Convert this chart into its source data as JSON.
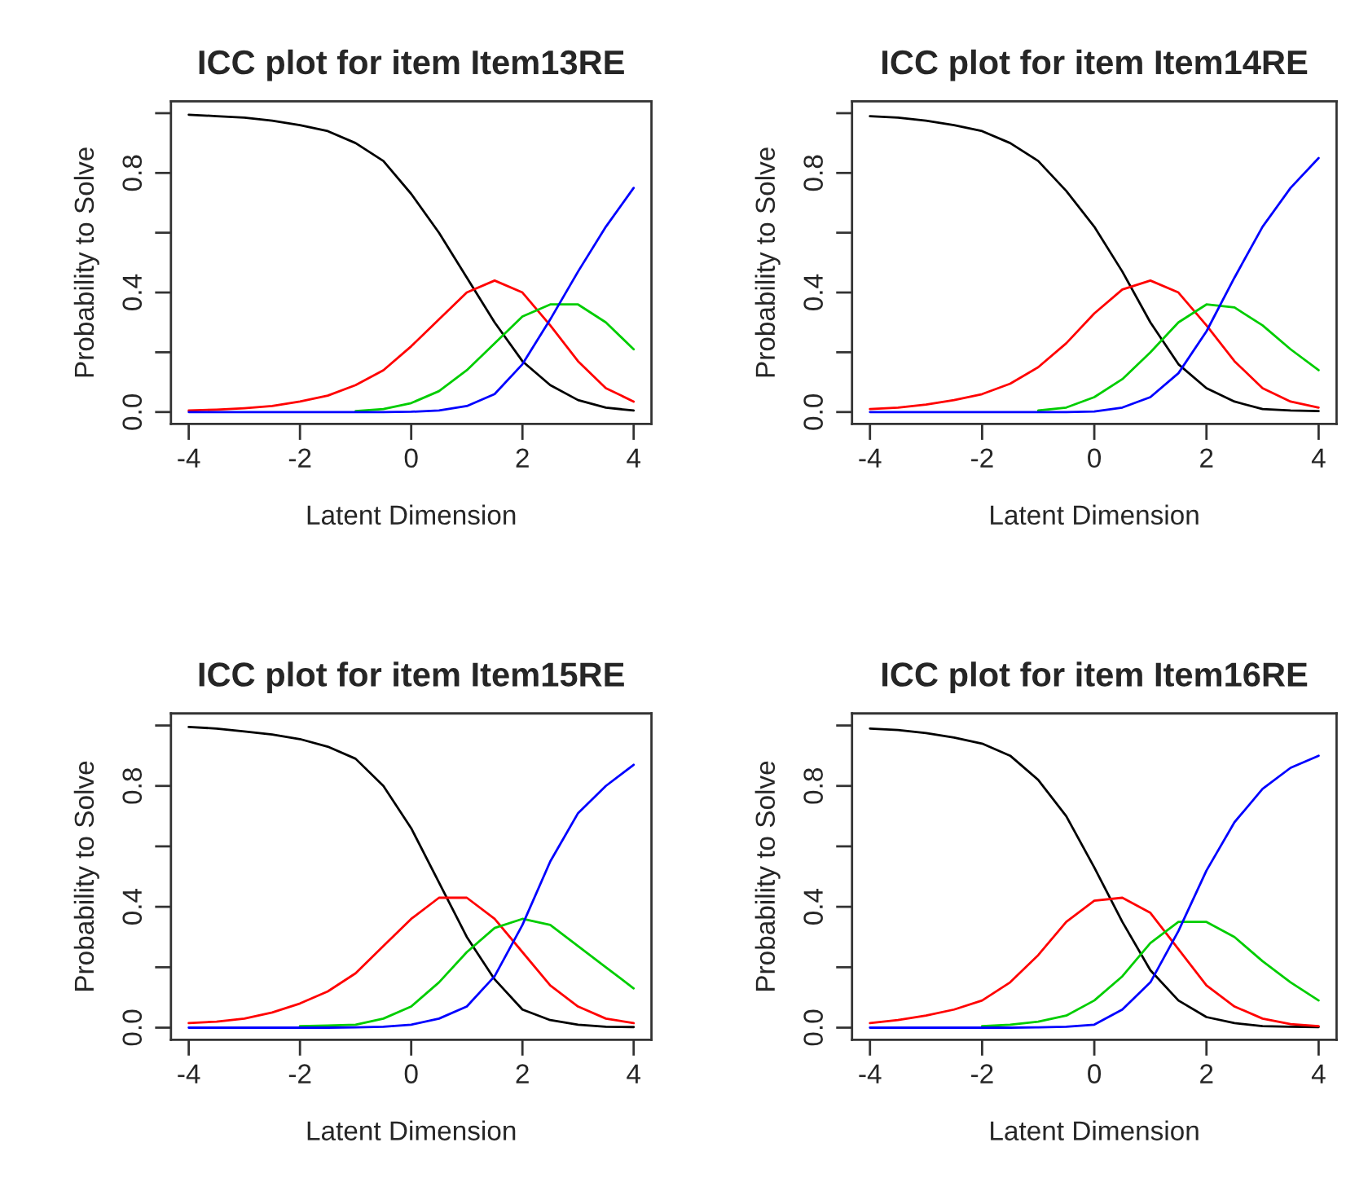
{
  "chart_data": [
    {
      "type": "line",
      "title": "ICC plot for item Item13RE",
      "xlabel": "Latent Dimension",
      "ylabel": "Probability to Solve",
      "x": [
        -4,
        -3.5,
        -3,
        -2.5,
        -2,
        -1.5,
        -1,
        -0.5,
        0,
        0.5,
        1,
        1.5,
        2,
        2.5,
        3,
        3.5,
        4
      ],
      "series": [
        {
          "color": "#000000",
          "values": [
            0.995,
            0.99,
            0.985,
            0.975,
            0.96,
            0.94,
            0.9,
            0.84,
            0.73,
            0.6,
            0.45,
            0.3,
            0.17,
            0.09,
            0.04,
            0.015,
            0.005
          ]
        },
        {
          "color": "#ff0000",
          "values": [
            0.005,
            0.008,
            0.013,
            0.02,
            0.035,
            0.055,
            0.09,
            0.14,
            0.22,
            0.31,
            0.4,
            0.44,
            0.4,
            0.29,
            0.17,
            0.08,
            0.035
          ]
        },
        {
          "color": "#00cd00",
          "values": [
            null,
            null,
            null,
            null,
            null,
            null,
            0.003,
            0.01,
            0.03,
            0.07,
            0.14,
            0.23,
            0.32,
            0.36,
            0.36,
            0.3,
            0.21
          ]
        },
        {
          "color": "#0000ff",
          "values": [
            0,
            0,
            0,
            0,
            0,
            0,
            0,
            0,
            0.001,
            0.005,
            0.02,
            0.06,
            0.16,
            0.31,
            0.47,
            0.62,
            0.75
          ]
        }
      ],
      "xlim": [
        -4.32,
        4.32
      ],
      "ylim": [
        -0.04,
        1.04
      ],
      "xticks": [
        -4,
        -2,
        0,
        2,
        4
      ],
      "yticks": [
        {
          "value": 0,
          "label": "0.0"
        },
        {
          "value": 0.2,
          "label": null
        },
        {
          "value": 0.4,
          "label": "0.4"
        },
        {
          "value": 0.6,
          "label": null
        },
        {
          "value": 0.8,
          "label": "0.8"
        },
        {
          "value": 1.0,
          "label": null
        }
      ]
    },
    {
      "type": "line",
      "title": "ICC plot for item Item14RE",
      "xlabel": "Latent Dimension",
      "ylabel": "Probability to Solve",
      "x": [
        -4,
        -3.5,
        -3,
        -2.5,
        -2,
        -1.5,
        -1,
        -0.5,
        0,
        0.5,
        1,
        1.5,
        2,
        2.5,
        3,
        3.5,
        4
      ],
      "series": [
        {
          "color": "#000000",
          "values": [
            0.99,
            0.985,
            0.975,
            0.96,
            0.94,
            0.9,
            0.84,
            0.74,
            0.62,
            0.47,
            0.3,
            0.16,
            0.08,
            0.035,
            0.01,
            0.005,
            0.003
          ]
        },
        {
          "color": "#ff0000",
          "values": [
            0.01,
            0.015,
            0.025,
            0.04,
            0.06,
            0.095,
            0.15,
            0.23,
            0.33,
            0.41,
            0.44,
            0.4,
            0.29,
            0.17,
            0.08,
            0.035,
            0.015
          ]
        },
        {
          "color": "#00cd00",
          "values": [
            null,
            null,
            null,
            null,
            null,
            null,
            0.005,
            0.015,
            0.05,
            0.11,
            0.2,
            0.3,
            0.36,
            0.35,
            0.29,
            0.21,
            0.14
          ]
        },
        {
          "color": "#0000ff",
          "values": [
            0,
            0,
            0,
            0,
            0,
            0,
            0,
            0,
            0.002,
            0.015,
            0.05,
            0.13,
            0.27,
            0.45,
            0.62,
            0.75,
            0.85
          ]
        }
      ],
      "xlim": [
        -4.32,
        4.32
      ],
      "ylim": [
        -0.04,
        1.04
      ],
      "xticks": [
        -4,
        -2,
        0,
        2,
        4
      ],
      "yticks": [
        {
          "value": 0,
          "label": "0.0"
        },
        {
          "value": 0.2,
          "label": null
        },
        {
          "value": 0.4,
          "label": "0.4"
        },
        {
          "value": 0.6,
          "label": null
        },
        {
          "value": 0.8,
          "label": "0.8"
        },
        {
          "value": 1.0,
          "label": null
        }
      ]
    },
    {
      "type": "line",
      "title": "ICC plot for item Item15RE",
      "xlabel": "Latent Dimension",
      "ylabel": "Probability to Solve",
      "x": [
        -4,
        -3.5,
        -3,
        -2.5,
        -2,
        -1.5,
        -1,
        -0.5,
        0,
        0.5,
        1,
        1.5,
        2,
        2.5,
        3,
        3.5,
        4
      ],
      "series": [
        {
          "color": "#000000",
          "values": [
            0.995,
            0.99,
            0.98,
            0.97,
            0.955,
            0.93,
            0.89,
            0.8,
            0.66,
            0.48,
            0.3,
            0.16,
            0.06,
            0.025,
            0.01,
            0.003,
            0.002
          ]
        },
        {
          "color": "#ff0000",
          "values": [
            0.015,
            0.02,
            0.03,
            0.05,
            0.08,
            0.12,
            0.18,
            0.27,
            0.36,
            0.43,
            0.43,
            0.36,
            0.25,
            0.14,
            0.07,
            0.03,
            0.015
          ]
        },
        {
          "color": "#00cd00",
          "values": [
            null,
            null,
            null,
            null,
            0.005,
            0.007,
            0.01,
            0.03,
            0.07,
            0.15,
            0.25,
            0.33,
            0.36,
            0.34,
            0.27,
            0.2,
            0.13
          ]
        },
        {
          "color": "#0000ff",
          "values": [
            0,
            0,
            0,
            0,
            0,
            0,
            0.001,
            0.003,
            0.01,
            0.03,
            0.07,
            0.17,
            0.34,
            0.55,
            0.71,
            0.8,
            0.87
          ]
        }
      ],
      "xlim": [
        -4.32,
        4.32
      ],
      "ylim": [
        -0.04,
        1.04
      ],
      "xticks": [
        -4,
        -2,
        0,
        2,
        4
      ],
      "yticks": [
        {
          "value": 0,
          "label": "0.0"
        },
        {
          "value": 0.2,
          "label": null
        },
        {
          "value": 0.4,
          "label": "0.4"
        },
        {
          "value": 0.6,
          "label": null
        },
        {
          "value": 0.8,
          "label": "0.8"
        },
        {
          "value": 1.0,
          "label": null
        }
      ]
    },
    {
      "type": "line",
      "title": "ICC plot for item Item16RE",
      "xlabel": "Latent Dimension",
      "ylabel": "Probability to Solve",
      "x": [
        -4,
        -3.5,
        -3,
        -2.5,
        -2,
        -1.5,
        -1,
        -0.5,
        0,
        0.5,
        1,
        1.5,
        2,
        2.5,
        3,
        3.5,
        4
      ],
      "series": [
        {
          "color": "#000000",
          "values": [
            0.99,
            0.985,
            0.975,
            0.96,
            0.94,
            0.9,
            0.82,
            0.7,
            0.53,
            0.35,
            0.19,
            0.09,
            0.035,
            0.015,
            0.005,
            0.003,
            0.002
          ]
        },
        {
          "color": "#ff0000",
          "values": [
            0.015,
            0.025,
            0.04,
            0.06,
            0.09,
            0.15,
            0.24,
            0.35,
            0.42,
            0.43,
            0.38,
            0.26,
            0.14,
            0.07,
            0.03,
            0.012,
            0.005
          ]
        },
        {
          "color": "#00cd00",
          "values": [
            null,
            null,
            null,
            null,
            0.005,
            0.01,
            0.02,
            0.04,
            0.09,
            0.17,
            0.28,
            0.35,
            0.35,
            0.3,
            0.22,
            0.15,
            0.09
          ]
        },
        {
          "color": "#0000ff",
          "values": [
            0,
            0,
            0,
            0,
            0,
            0,
            0.001,
            0.003,
            0.01,
            0.06,
            0.15,
            0.32,
            0.52,
            0.68,
            0.79,
            0.86,
            0.9
          ]
        }
      ],
      "xlim": [
        -4.32,
        4.32
      ],
      "ylim": [
        -0.04,
        1.04
      ],
      "xticks": [
        -4,
        -2,
        0,
        2,
        4
      ],
      "yticks": [
        {
          "value": 0,
          "label": "0.0"
        },
        {
          "value": 0.2,
          "label": null
        },
        {
          "value": 0.4,
          "label": "0.4"
        },
        {
          "value": 0.6,
          "label": null
        },
        {
          "value": 0.8,
          "label": "0.8"
        },
        {
          "value": 1.0,
          "label": null
        }
      ]
    }
  ]
}
